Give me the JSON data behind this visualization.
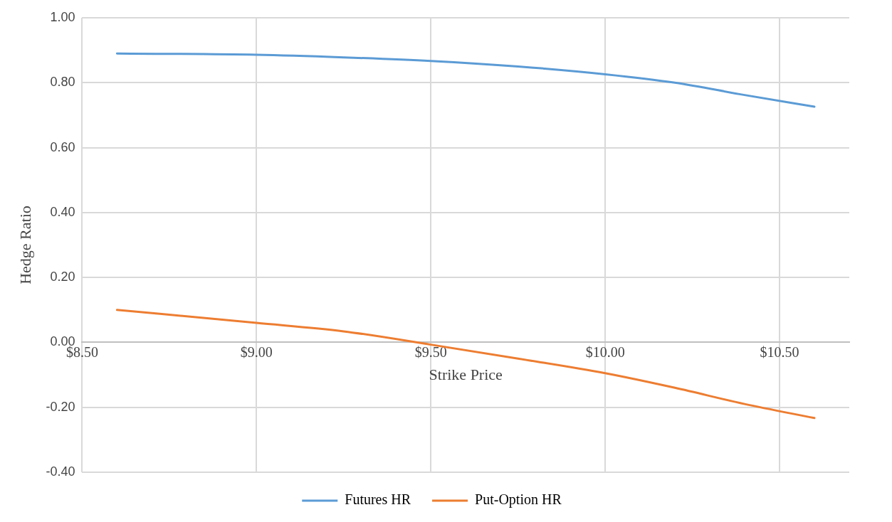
{
  "chart_data": {
    "type": "line",
    "xlabel": "Strike Price",
    "ylabel": "Hedge Ratio",
    "x": [
      8.6,
      9.0,
      9.25,
      9.5,
      9.75,
      10.0,
      10.2,
      10.4,
      10.6
    ],
    "series": [
      {
        "name": "Futures HR",
        "color": "#5b9bd5",
        "values": [
          0.89,
          0.886,
          0.878,
          0.867,
          0.85,
          0.826,
          0.8,
          0.762,
          0.726
        ]
      },
      {
        "name": "Put-Option HR",
        "color": "#ed7d31",
        "values": [
          0.1,
          0.06,
          0.034,
          -0.007,
          -0.05,
          -0.095,
          -0.14,
          -0.19,
          -0.233
        ]
      }
    ],
    "xlim": [
      8.5,
      10.7
    ],
    "xticks": [
      {
        "value": 8.5,
        "label": "$8.50"
      },
      {
        "value": 9,
        "label": "$9.00"
      },
      {
        "value": 9.5,
        "label": "$9.50"
      },
      {
        "value": 10,
        "label": "$10.00"
      },
      {
        "value": 10.5,
        "label": "$10.50"
      }
    ],
    "ylim": [
      -0.4,
      1
    ],
    "yticks": [
      {
        "value": -0.4,
        "label": "-0.40"
      },
      {
        "value": -0.2,
        "label": "-0.20"
      },
      {
        "value": 0,
        "label": "0.00"
      },
      {
        "value": 0.2,
        "label": "0.20"
      },
      {
        "value": 0.4,
        "label": "0.40"
      },
      {
        "value": 0.6,
        "label": "0.60"
      },
      {
        "value": 0.8,
        "label": "0.80"
      },
      {
        "value": 1,
        "label": "1.00"
      }
    ],
    "grid": true,
    "legend": "bottom",
    "marker": "none",
    "line_style": "solid"
  }
}
